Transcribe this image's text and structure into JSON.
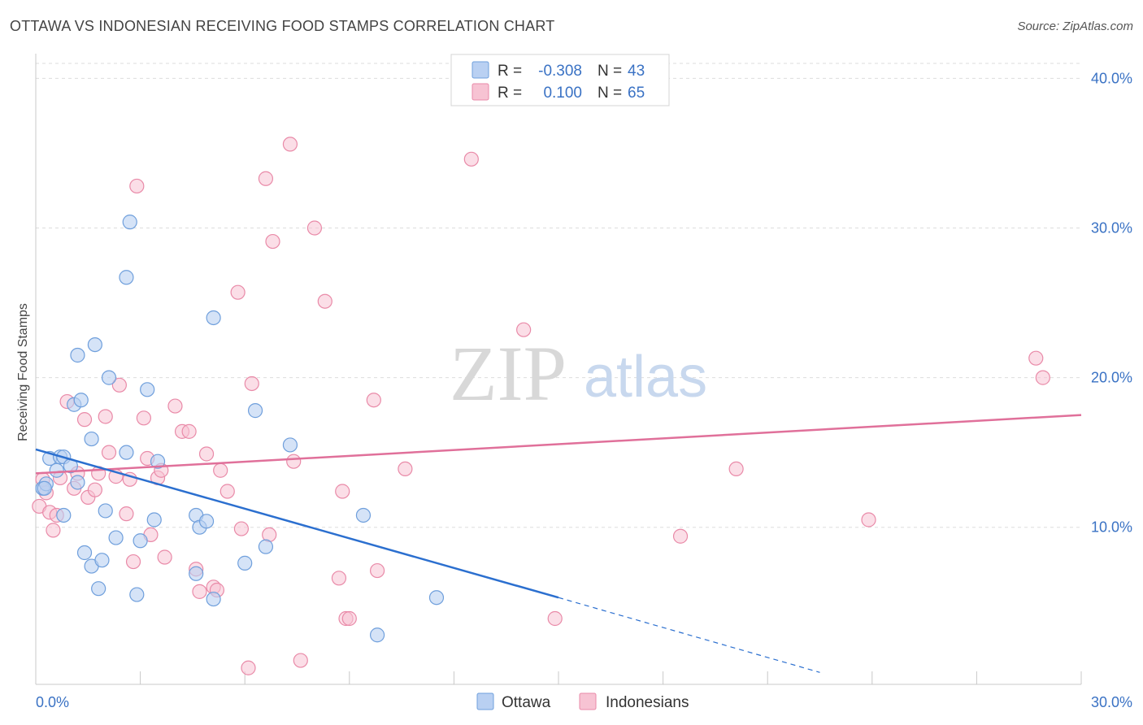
{
  "title": "OTTAWA VS INDONESIAN RECEIVING FOOD STAMPS CORRELATION CHART",
  "source": "Source: ZipAtlas.com",
  "watermark": {
    "zip": "ZIP",
    "atlas": "atlas"
  },
  "legend_top": [
    {
      "r_label": "R =",
      "r_value": "-0.308",
      "n_label": "N =",
      "n_value": "43"
    },
    {
      "r_label": "R =",
      "r_value": "0.100",
      "n_label": "N =",
      "n_value": "65"
    }
  ],
  "legend_bottom": [
    "Ottawa",
    "Indonesians"
  ],
  "colors": {
    "ottawa_fill": "#b9d0f2",
    "ottawa_stroke": "#6f9fdc",
    "ottawa_line": "#2b6fcf",
    "indo_fill": "#f7c3d3",
    "indo_stroke": "#e98aa8",
    "indo_line": "#e0709a",
    "tick_text": "#3a72c4",
    "grid": "#dddddd"
  },
  "chart_data": {
    "type": "scatter",
    "title": "OTTAWA VS INDONESIAN RECEIVING FOOD STAMPS CORRELATION CHART",
    "xlabel": "",
    "ylabel": "Receiving Food Stamps",
    "xlim": [
      0,
      30
    ],
    "ylim": [
      -0.5,
      41
    ],
    "x_tick_labels": [
      "0.0%",
      "30.0%"
    ],
    "y_ticks": [
      10,
      20,
      30,
      40
    ],
    "y_tick_labels": [
      "10.0%",
      "20.0%",
      "30.0%",
      "40.0%"
    ],
    "grid": true,
    "legend_position": "top-center",
    "series": [
      {
        "name": "Ottawa",
        "r": -0.308,
        "n": 43,
        "trend": {
          "x0": 0,
          "y0": 15.2,
          "x1": 15,
          "y1": 5.3,
          "dash_to_x": 22.5,
          "dash_to_y": 0.3
        },
        "points": [
          [
            0.2,
            12.6
          ],
          [
            0.3,
            12.9
          ],
          [
            0.4,
            14.6
          ],
          [
            0.6,
            13.8
          ],
          [
            0.7,
            14.7
          ],
          [
            0.8,
            10.8
          ],
          [
            0.8,
            14.7
          ],
          [
            1.0,
            14.1
          ],
          [
            1.1,
            18.2
          ],
          [
            1.2,
            13.0
          ],
          [
            1.2,
            21.5
          ],
          [
            1.3,
            18.5
          ],
          [
            1.4,
            8.3
          ],
          [
            1.6,
            15.9
          ],
          [
            1.6,
            7.4
          ],
          [
            1.7,
            22.2
          ],
          [
            1.8,
            5.9
          ],
          [
            1.9,
            7.8
          ],
          [
            2.0,
            11.1
          ],
          [
            2.1,
            20.0
          ],
          [
            2.3,
            9.3
          ],
          [
            2.6,
            15.0
          ],
          [
            2.6,
            26.7
          ],
          [
            2.7,
            30.4
          ],
          [
            2.9,
            5.5
          ],
          [
            3.0,
            9.1
          ],
          [
            3.2,
            19.2
          ],
          [
            3.4,
            10.5
          ],
          [
            3.5,
            14.4
          ],
          [
            4.6,
            6.9
          ],
          [
            4.6,
            10.8
          ],
          [
            4.7,
            10.0
          ],
          [
            4.9,
            10.4
          ],
          [
            5.1,
            5.2
          ],
          [
            5.1,
            24.0
          ],
          [
            6.0,
            7.6
          ],
          [
            6.3,
            17.8
          ],
          [
            6.6,
            8.7
          ],
          [
            7.3,
            15.5
          ],
          [
            9.4,
            10.8
          ],
          [
            9.8,
            2.8
          ],
          [
            11.5,
            5.3
          ],
          [
            0.25,
            12.6
          ]
        ]
      },
      {
        "name": "Indonesians",
        "r": 0.1,
        "n": 65,
        "trend": {
          "x0": 0,
          "y0": 13.6,
          "x1": 30,
          "y1": 17.5
        },
        "points": [
          [
            0.1,
            11.4
          ],
          [
            0.2,
            13.2
          ],
          [
            0.3,
            12.3
          ],
          [
            0.4,
            11.0
          ],
          [
            0.5,
            9.8
          ],
          [
            0.6,
            10.8
          ],
          [
            0.7,
            13.3
          ],
          [
            0.9,
            18.4
          ],
          [
            1.1,
            12.6
          ],
          [
            1.2,
            13.6
          ],
          [
            1.4,
            17.2
          ],
          [
            1.5,
            12.0
          ],
          [
            1.7,
            12.5
          ],
          [
            1.8,
            13.6
          ],
          [
            2.0,
            17.4
          ],
          [
            2.1,
            15.0
          ],
          [
            2.3,
            13.4
          ],
          [
            2.4,
            19.5
          ],
          [
            2.6,
            10.9
          ],
          [
            2.7,
            13.2
          ],
          [
            2.8,
            7.7
          ],
          [
            2.9,
            32.8
          ],
          [
            3.1,
            17.3
          ],
          [
            3.2,
            14.6
          ],
          [
            3.3,
            9.5
          ],
          [
            3.5,
            13.3
          ],
          [
            3.6,
            13.8
          ],
          [
            3.7,
            8.0
          ],
          [
            4.0,
            18.1
          ],
          [
            4.2,
            16.4
          ],
          [
            4.4,
            16.4
          ],
          [
            4.6,
            7.2
          ],
          [
            4.7,
            5.7
          ],
          [
            4.9,
            14.9
          ],
          [
            5.1,
            6.0
          ],
          [
            5.2,
            5.8
          ],
          [
            5.3,
            13.8
          ],
          [
            5.5,
            12.4
          ],
          [
            5.8,
            25.7
          ],
          [
            5.9,
            9.9
          ],
          [
            6.1,
            0.6
          ],
          [
            6.2,
            19.6
          ],
          [
            6.6,
            33.3
          ],
          [
            6.7,
            9.5
          ],
          [
            6.8,
            29.1
          ],
          [
            7.3,
            35.6
          ],
          [
            7.4,
            14.4
          ],
          [
            7.6,
            1.1
          ],
          [
            8.0,
            30.0
          ],
          [
            8.3,
            25.1
          ],
          [
            8.7,
            6.6
          ],
          [
            8.8,
            12.4
          ],
          [
            8.9,
            3.9
          ],
          [
            9.0,
            3.9
          ],
          [
            9.7,
            18.5
          ],
          [
            9.8,
            7.1
          ],
          [
            10.6,
            13.9
          ],
          [
            12.5,
            34.6
          ],
          [
            14.0,
            23.2
          ],
          [
            14.9,
            3.9
          ],
          [
            18.5,
            9.4
          ],
          [
            20.1,
            13.9
          ],
          [
            23.9,
            10.5
          ],
          [
            28.7,
            21.3
          ],
          [
            28.9,
            20.0
          ]
        ]
      }
    ]
  }
}
